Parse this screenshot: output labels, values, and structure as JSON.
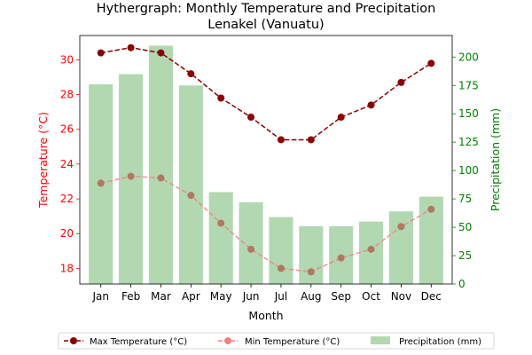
{
  "chart_data": {
    "type": "bar+line",
    "title": "Hythergraph: Monthly Temperature and Precipitation",
    "subtitle": "Lenakel (Vanuatu)",
    "xlabel": "Month",
    "ylabel_left": "Temperature (°C)",
    "ylabel_right": "Precipitation (mm)",
    "categories": [
      "Jan",
      "Feb",
      "Mar",
      "Apr",
      "May",
      "Jun",
      "Jul",
      "Aug",
      "Sep",
      "Oct",
      "Nov",
      "Dec"
    ],
    "ylim_left": [
      17.1,
      31.4
    ],
    "ylim_right": [
      0,
      219
    ],
    "yticks_left": [
      18,
      20,
      22,
      24,
      26,
      28,
      30
    ],
    "yticks_right": [
      0,
      25,
      50,
      75,
      100,
      125,
      150,
      175,
      200
    ],
    "grid": false,
    "legend_position": "bottom-center",
    "series": [
      {
        "name": "Max Temperature (°C)",
        "type": "line",
        "axis": "left",
        "color": "#8b0000",
        "linestyle": "dashed",
        "values": [
          30.4,
          30.7,
          30.4,
          29.2,
          27.8,
          26.7,
          25.4,
          25.4,
          26.7,
          27.4,
          28.7,
          29.8
        ]
      },
      {
        "name": "Min Temperature (°C)",
        "type": "line",
        "axis": "left",
        "color": "#f08080",
        "linestyle": "dashed",
        "values": [
          22.9,
          23.3,
          23.2,
          22.2,
          20.6,
          19.1,
          18.0,
          17.8,
          18.6,
          19.1,
          20.4,
          21.4
        ]
      },
      {
        "name": "Precipitation (mm)",
        "type": "bar",
        "axis": "right",
        "color": "#b2d8b2",
        "values": [
          176,
          185,
          210,
          175,
          81,
          72,
          59,
          51,
          51,
          55,
          64,
          77
        ]
      }
    ]
  },
  "colors": {
    "left_axis": "#ff0000",
    "right_axis": "#008000"
  }
}
